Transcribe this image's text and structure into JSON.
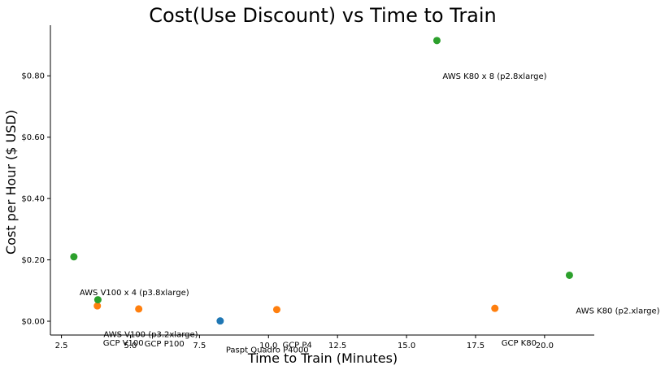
{
  "chart_data": {
    "type": "scatter",
    "title": "Cost(Use Discount) vs Time to Train",
    "xlabel": "Time to Train (Minutes)",
    "ylabel": "Cost per Hour ($ USD)",
    "xlim": [
      2.1,
      21.8
    ],
    "ylim": [
      -0.045,
      0.965
    ],
    "xticks": [
      {
        "value": 2.5,
        "label": "2.5"
      },
      {
        "value": 5.0,
        "label": "5.0"
      },
      {
        "value": 7.5,
        "label": "7.5"
      },
      {
        "value": 10.0,
        "label": "10.0"
      },
      {
        "value": 12.5,
        "label": "12.5"
      },
      {
        "value": 15.0,
        "label": "15.0"
      },
      {
        "value": 17.5,
        "label": "17.5"
      },
      {
        "value": 20.0,
        "label": "20.0"
      }
    ],
    "yticks": [
      {
        "value": 0.0,
        "label": "$0.00"
      },
      {
        "value": 0.2,
        "label": "$0.20"
      },
      {
        "value": 0.4,
        "label": "$0.40"
      },
      {
        "value": 0.6,
        "label": "$0.60"
      },
      {
        "value": 0.8,
        "label": "$0.80"
      }
    ],
    "grid": false,
    "series": [
      {
        "color": "#1f77b4",
        "points": [
          {
            "x": 8.25,
            "y": 0.001,
            "label": "Paspt Quadro P4000"
          }
        ]
      },
      {
        "color": "#ff7f0e",
        "points": [
          {
            "x": 3.8,
            "y": 0.05,
            "label": "GCP V100"
          },
          {
            "x": 5.3,
            "y": 0.04,
            "label": "GCP P100"
          },
          {
            "x": 10.3,
            "y": 0.038,
            "label": "GCP P4"
          },
          {
            "x": 18.2,
            "y": 0.042,
            "label": "GCP K80"
          }
        ]
      },
      {
        "color": "#2ca02c",
        "points": [
          {
            "x": 2.95,
            "y": 0.21,
            "label": "AWS V100 x 4 (p3.8xlarge)"
          },
          {
            "x": 3.82,
            "y": 0.07,
            "label": "AWS V100 (p3.2xlarge)"
          },
          {
            "x": 16.1,
            "y": 0.915,
            "label": "AWS K80 x 8 (p2.8xlarge)"
          },
          {
            "x": 20.9,
            "y": 0.15,
            "label": "AWS K80 (p2.xlarge)"
          }
        ]
      }
    ]
  }
}
